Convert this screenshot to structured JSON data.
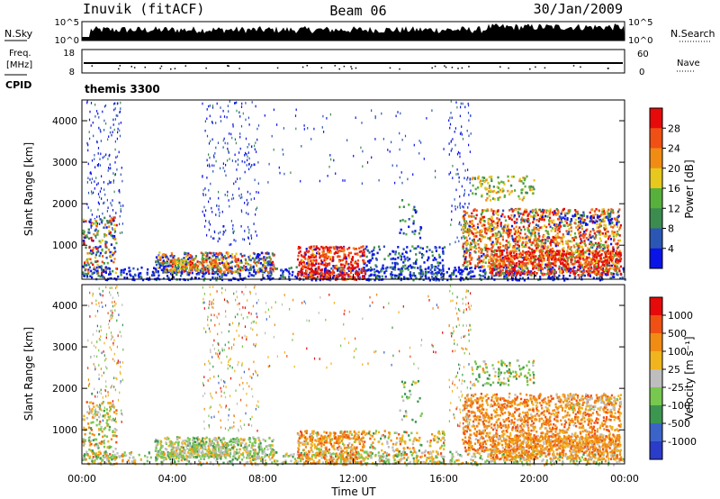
{
  "header": {
    "station": "Inuvik (fitACF)",
    "beam": "Beam 06",
    "date": "30/Jan/2009"
  },
  "top_panels": {
    "nsky_label": "N.Sky",
    "nsky_ticks": [
      "10^5",
      "10^0"
    ],
    "nsearch_label": "N.Search",
    "nsearch_ticks": [
      "10^5",
      "10^0"
    ],
    "freq_label_1": "Freq.",
    "freq_label_2": "[MHz]",
    "freq_ticks": [
      "18",
      "8"
    ],
    "nave_label": "Nave",
    "nave_ticks": [
      "60",
      "0"
    ],
    "cpid_label": "CPID",
    "cpid_value": "themis 3300"
  },
  "chart_data": [
    {
      "type": "heatmap",
      "name": "power-panel",
      "ylabel": "Slant Range [km]",
      "xlabel": "",
      "y_ticks": [
        "1000",
        "2000",
        "3000",
        "4000"
      ],
      "ylim": [
        180,
        4500
      ],
      "xlim_hours": [
        0,
        24
      ],
      "colorbar": {
        "label": "Power [dB]",
        "ticks": [
          "4",
          "8",
          "12",
          "16",
          "20",
          "24",
          "28"
        ],
        "range": [
          0,
          30
        ],
        "colors": [
          "#0a14e6",
          "#2c56b4",
          "#3c8c50",
          "#58b03c",
          "#e6c81e",
          "#f08c14",
          "#f05014",
          "#e60a0a"
        ]
      }
    },
    {
      "type": "heatmap",
      "name": "velocity-panel",
      "ylabel": "Slant Range [km]",
      "xlabel": "Time UT",
      "y_ticks": [
        "1000",
        "2000",
        "3000",
        "4000"
      ],
      "ylim": [
        180,
        4500
      ],
      "x_ticks": [
        "00:00",
        "04:00",
        "08:00",
        "12:00",
        "16:00",
        "20:00",
        "00:00"
      ],
      "xlim_hours": [
        0,
        24
      ],
      "colorbar": {
        "label": "Velocity [m s⁻¹]",
        "ticks": [
          "1000",
          "500",
          "100",
          "25",
          "-25",
          "-100",
          "-500",
          "-1000"
        ],
        "colors": [
          "#2a3cc8",
          "#3c64c8",
          "#3c9650",
          "#78c850",
          "#bebebe",
          "#f0b41e",
          "#f08c14",
          "#f05014",
          "#e60a0a"
        ]
      }
    }
  ]
}
